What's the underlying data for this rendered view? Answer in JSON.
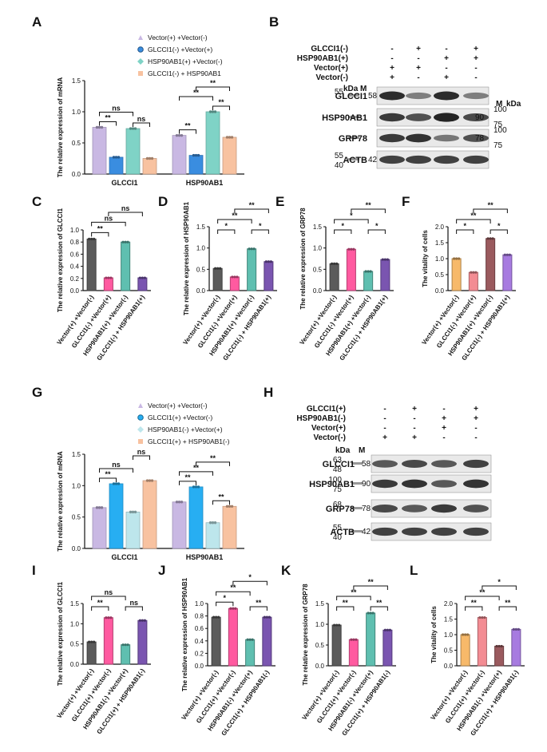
{
  "panels_top": {
    "A": {
      "label": "A",
      "ylabel": "The relative expression of mRNA",
      "legend": [
        "Vector(+) +Vector(-)",
        "GLCCI1(-) +Vector(+)",
        "HSP90AB1(+) +Vector(-)",
        "GLCCI1(-) + HSP90AB1"
      ],
      "colors": [
        "#c9b8e3",
        "#3a8de0",
        "#7fd3c6",
        "#f8c2a0"
      ],
      "groups": [
        "GLCCI1",
        "HSP90AB1"
      ],
      "values": [
        [
          0.75,
          0.27,
          0.73,
          0.25
        ],
        [
          0.62,
          0.3,
          1.0,
          0.59
        ]
      ],
      "ylim": [
        0,
        1.5
      ],
      "yticks": [
        "0.0",
        "0.5",
        "1.0",
        "1.5"
      ],
      "sig": [
        {
          "g": 0,
          "a": 0,
          "b": 1,
          "t": "**",
          "lv": 1
        },
        {
          "g": 0,
          "a": 0,
          "b": 2,
          "t": "ns",
          "lv": 2
        },
        {
          "g": 0,
          "a": 2,
          "b": 3,
          "t": "ns",
          "lv": 1
        },
        {
          "g": 1,
          "a": 0,
          "b": 1,
          "t": "**",
          "lv": 1
        },
        {
          "g": 1,
          "a": 0,
          "b": 2,
          "t": "**",
          "lv": 2
        },
        {
          "g": 1,
          "a": 2,
          "b": 3,
          "t": "**",
          "lv": 1
        },
        {
          "g": 1,
          "a": 1,
          "b": 3,
          "t": "**",
          "lv": 3
        }
      ]
    },
    "C": {
      "label": "C",
      "ylabel": "The relative expression of GLCCI1",
      "cats": [
        "Vector(+) +Vector(-)",
        "GLCCI1(-) +Vector(+)",
        "HSP90AB1(+) +Vector(-)",
        "GLCCI1(-) + HSP90AB1(+)"
      ],
      "colors": [
        "#5b5b5b",
        "#ff5aa0",
        "#5fbfb0",
        "#7a55b0"
      ],
      "values": [
        0.85,
        0.21,
        0.8,
        0.21
      ],
      "ylim": [
        0,
        1.0
      ],
      "yticks": [
        "0.0",
        "0.2",
        "0.4",
        "0.6",
        "0.8",
        "1.0"
      ],
      "sig": [
        {
          "a": 0,
          "b": 1,
          "t": "**",
          "lv": 1
        },
        {
          "a": 0,
          "b": 2,
          "t": "ns",
          "lv": 2
        },
        {
          "a": 1,
          "b": 3,
          "t": "ns",
          "lv": 3
        }
      ]
    },
    "D": {
      "label": "D",
      "ylabel": "The relative expression of HSP90AB1",
      "cats": [
        "Vector(+) +Vector(-)",
        "GLCCI1(-) +Vector(+)",
        "HSP90AB1(+) +Vector(-)",
        "GLCCI1(-) + HSP90AB1(+)"
      ],
      "colors": [
        "#5b5b5b",
        "#ff5aa0",
        "#5fbfb0",
        "#7a55b0"
      ],
      "values": [
        0.52,
        0.32,
        0.98,
        0.68
      ],
      "ylim": [
        0,
        1.5
      ],
      "yticks": [
        "0.0",
        "0.5",
        "1.0",
        "1.5"
      ],
      "sig": [
        {
          "a": 0,
          "b": 1,
          "t": "*",
          "lv": 1
        },
        {
          "a": 0,
          "b": 2,
          "t": "**",
          "lv": 2
        },
        {
          "a": 2,
          "b": 3,
          "t": "*",
          "lv": 1
        },
        {
          "a": 1,
          "b": 3,
          "t": "**",
          "lv": 3
        }
      ]
    },
    "E": {
      "label": "E",
      "ylabel": "The relative expression of GRP78",
      "cats": [
        "Vector(+) +Vector(-)",
        "GLCCI1(-) +Vector(+)",
        "HSP90AB1(+) +Vector(-)",
        "GLCCI1(-) + HSP90AB1(+)"
      ],
      "colors": [
        "#5b5b5b",
        "#ff5aa0",
        "#5fbfb0",
        "#7a55b0"
      ],
      "values": [
        0.63,
        0.97,
        0.45,
        0.73
      ],
      "ylim": [
        0,
        1.5
      ],
      "yticks": [
        "0.0",
        "0.5",
        "1.0",
        "1.5"
      ],
      "sig": [
        {
          "a": 0,
          "b": 1,
          "t": "*",
          "lv": 1
        },
        {
          "a": 0,
          "b": 2,
          "t": "*",
          "lv": 2
        },
        {
          "a": 2,
          "b": 3,
          "t": "*",
          "lv": 1
        },
        {
          "a": 1,
          "b": 3,
          "t": "**",
          "lv": 3
        }
      ]
    },
    "F": {
      "label": "F",
      "ylabel": "The vitality of cells",
      "cats": [
        "Vector(+) +Vector(-)",
        "GLCCI1(-) +Vector(+)",
        "HSP90AB1(+) +Vector(-)",
        "GLCCI1(-) + HSP90AB1(+)"
      ],
      "colors": [
        "#f7b96a",
        "#f38c93",
        "#9a5a5e",
        "#a77be0"
      ],
      "values": [
        1.0,
        0.57,
        1.63,
        1.12
      ],
      "ylim": [
        0,
        2.0
      ],
      "yticks": [
        "0.0",
        "0.5",
        "1.0",
        "1.5",
        "2.0"
      ],
      "sig": [
        {
          "a": 0,
          "b": 1,
          "t": "*",
          "lv": 1
        },
        {
          "a": 0,
          "b": 2,
          "t": "**",
          "lv": 2
        },
        {
          "a": 2,
          "b": 3,
          "t": "*",
          "lv": 1
        },
        {
          "a": 1,
          "b": 3,
          "t": "**",
          "lv": 3
        }
      ]
    }
  },
  "panels_bottom": {
    "G": {
      "label": "G",
      "ylabel": "The relative expression of mRNA",
      "legend": [
        "Vector(+) +Vector(-)",
        "GLCCI1(+) +Vector(-)",
        "HSP90AB1(-) +Vector(+)",
        "GLCCI1(+) + HSP90AB1(-)"
      ],
      "colors": [
        "#c9b8e3",
        "#27aef2",
        "#bde6ec",
        "#f8c2a0"
      ],
      "groups": [
        "GLCCI1",
        "HSP90AB1"
      ],
      "values": [
        [
          0.65,
          1.03,
          0.58,
          1.08
        ],
        [
          0.74,
          0.98,
          0.41,
          0.67
        ]
      ],
      "ylim": [
        0,
        1.5
      ],
      "yticks": [
        "0.0",
        "0.5",
        "1.0",
        "1.5"
      ],
      "sig": [
        {
          "g": 0,
          "a": 0,
          "b": 1,
          "t": "**",
          "lv": 1
        },
        {
          "g": 0,
          "a": 0,
          "b": 2,
          "t": "ns",
          "lv": 2
        },
        {
          "g": 0,
          "a": 2,
          "b": 3,
          "t": "ns",
          "lv": 3
        },
        {
          "g": 1,
          "a": 0,
          "b": 1,
          "t": "**",
          "lv": 1
        },
        {
          "g": 1,
          "a": 0,
          "b": 2,
          "t": "**",
          "lv": 2
        },
        {
          "g": 1,
          "a": 2,
          "b": 3,
          "t": "**",
          "lv": 1
        },
        {
          "g": 1,
          "a": 1,
          "b": 3,
          "t": "**",
          "lv": 3
        }
      ]
    },
    "I": {
      "label": "I",
      "ylabel": "The relative expression of GLCCI1",
      "cats": [
        "Vector(+) +Vector(-)",
        "GLCCI1(+) +Vector(-)",
        "HSP90AB1(-) +Vector(+)",
        "GLCCI1(+) + HSP90AB1(-)"
      ],
      "colors": [
        "#5b5b5b",
        "#ff5aa0",
        "#5fbfb0",
        "#7a55b0"
      ],
      "values": [
        0.55,
        1.15,
        0.48,
        1.08
      ],
      "ylim": [
        0,
        1.5
      ],
      "yticks": [
        "0.0",
        "0.5",
        "1.0",
        "1.5"
      ],
      "sig": [
        {
          "a": 0,
          "b": 1,
          "t": "**",
          "lv": 1
        },
        {
          "a": 0,
          "b": 2,
          "t": "ns",
          "lv": 2
        },
        {
          "a": 2,
          "b": 3,
          "t": "ns",
          "lv": 1
        }
      ]
    },
    "J": {
      "label": "J",
      "ylabel": "The relative expression of HSP90AB1",
      "cats": [
        "Vector(+) +Vector(-)",
        "GLCCI1(+) +Vector(-)",
        "HSP90AB1(-) +Vector(+)",
        "GLCCI1(+) + HSP90AB1(-)"
      ],
      "colors": [
        "#5b5b5b",
        "#ff5aa0",
        "#5fbfb0",
        "#7a55b0"
      ],
      "values": [
        0.78,
        0.92,
        0.42,
        0.78
      ],
      "ylim": [
        0,
        1.0
      ],
      "yticks": [
        "0.0",
        "0.2",
        "0.4",
        "0.6",
        "0.8",
        "1.0"
      ],
      "sig": [
        {
          "a": 0,
          "b": 1,
          "t": "*",
          "lv": 1
        },
        {
          "a": 0,
          "b": 2,
          "t": "**",
          "lv": 2
        },
        {
          "a": 2,
          "b": 3,
          "t": "**",
          "lv": 1
        },
        {
          "a": 1,
          "b": 3,
          "t": "*",
          "lv": 3
        }
      ]
    },
    "K": {
      "label": "K",
      "ylabel": "The relative expression of GRP78",
      "cats": [
        "Vector(+) +Vector(-)",
        "GLCCI1(+) +Vector(-)",
        "HSP90AB1(-) +Vector(+)",
        "GLCCI1(+) + HSP90AB1(-)"
      ],
      "colors": [
        "#5b5b5b",
        "#ff5aa0",
        "#5fbfb0",
        "#7a55b0"
      ],
      "values": [
        0.98,
        0.63,
        1.27,
        0.86
      ],
      "ylim": [
        0,
        1.5
      ],
      "yticks": [
        "0.0",
        "0.5",
        "1.0",
        "1.5"
      ],
      "sig": [
        {
          "a": 0,
          "b": 1,
          "t": "**",
          "lv": 1
        },
        {
          "a": 0,
          "b": 2,
          "t": "**",
          "lv": 2
        },
        {
          "a": 2,
          "b": 3,
          "t": "**",
          "lv": 1
        },
        {
          "a": 1,
          "b": 3,
          "t": "**",
          "lv": 3
        }
      ]
    },
    "L": {
      "label": "L",
      "ylabel": "The vitality of cells",
      "cats": [
        "Vector(+) +Vector(-)",
        "GLCCI1(+) +Vector(-)",
        "HSP90AB1(-) +Vector(+)",
        "GLCCI1(+) + HSP90AB1(-)"
      ],
      "colors": [
        "#f7b96a",
        "#f38c93",
        "#9a5a5e",
        "#a77be0"
      ],
      "values": [
        1.0,
        1.55,
        0.63,
        1.17
      ],
      "ylim": [
        0,
        2.0
      ],
      "yticks": [
        "0.0",
        "0.5",
        "1.0",
        "1.5",
        "2.0"
      ],
      "sig": [
        {
          "a": 0,
          "b": 1,
          "t": "**",
          "lv": 1
        },
        {
          "a": 0,
          "b": 2,
          "t": "**",
          "lv": 2
        },
        {
          "a": 2,
          "b": 3,
          "t": "**",
          "lv": 1
        },
        {
          "a": 1,
          "b": 3,
          "t": "*",
          "lv": 3
        }
      ]
    }
  },
  "blots": {
    "B": {
      "label": "B",
      "conditions": [
        {
          "name": "GLCCI1(-)",
          "signs": [
            "-",
            "+",
            "-",
            "+"
          ]
        },
        {
          "name": "HSP90AB1(+)",
          "signs": [
            "-",
            "-",
            "+",
            "+"
          ]
        },
        {
          "name": "Vector(+)",
          "signs": [
            "+",
            "+",
            "-",
            "-"
          ]
        },
        {
          "name": "Vector(-)",
          "signs": [
            "+",
            "-",
            "+",
            "-"
          ]
        }
      ],
      "kda": "kDa",
      "marker": "M",
      "marker_right": "M",
      "kda_right": "kDa",
      "rows": [
        {
          "name": "GLCCI1",
          "left": [
            "55"
          ],
          "inner": "58",
          "right": []
        },
        {
          "name": "HSP90AB1",
          "left": [],
          "inner": "",
          "right": [
            "100",
            "75"
          ],
          "inner_right": "90"
        },
        {
          "name": "GRP78",
          "left": [],
          "inner": "",
          "right": [
            "100",
            "75"
          ],
          "inner_right": "78"
        },
        {
          "name": "ACTB",
          "left": [
            "55",
            "40"
          ],
          "inner": "42",
          "right": []
        }
      ]
    },
    "H": {
      "label": "H",
      "conditions": [
        {
          "name": "GLCCI1(+)",
          "signs": [
            "-",
            "+",
            "-",
            "+"
          ]
        },
        {
          "name": "HSP90AB1(-)",
          "signs": [
            "-",
            "-",
            "+",
            "+"
          ]
        },
        {
          "name": "Vector(+)",
          "signs": [
            "-",
            "-",
            "+",
            "-"
          ]
        },
        {
          "name": "Vector(-)",
          "signs": [
            "+",
            "+",
            "-",
            "-"
          ]
        }
      ],
      "kda": "kDa",
      "marker": "M",
      "rows": [
        {
          "name": "GLCCI1",
          "left": [
            "63",
            "48"
          ],
          "inner": "58"
        },
        {
          "name": "HSP90AB1",
          "left": [
            "100",
            "75"
          ],
          "inner": "90"
        },
        {
          "name": "GRP78",
          "left": [
            "68"
          ],
          "inner": "78"
        },
        {
          "name": "ACTB",
          "left": [
            "55",
            "40"
          ],
          "inner": "42"
        }
      ]
    }
  }
}
